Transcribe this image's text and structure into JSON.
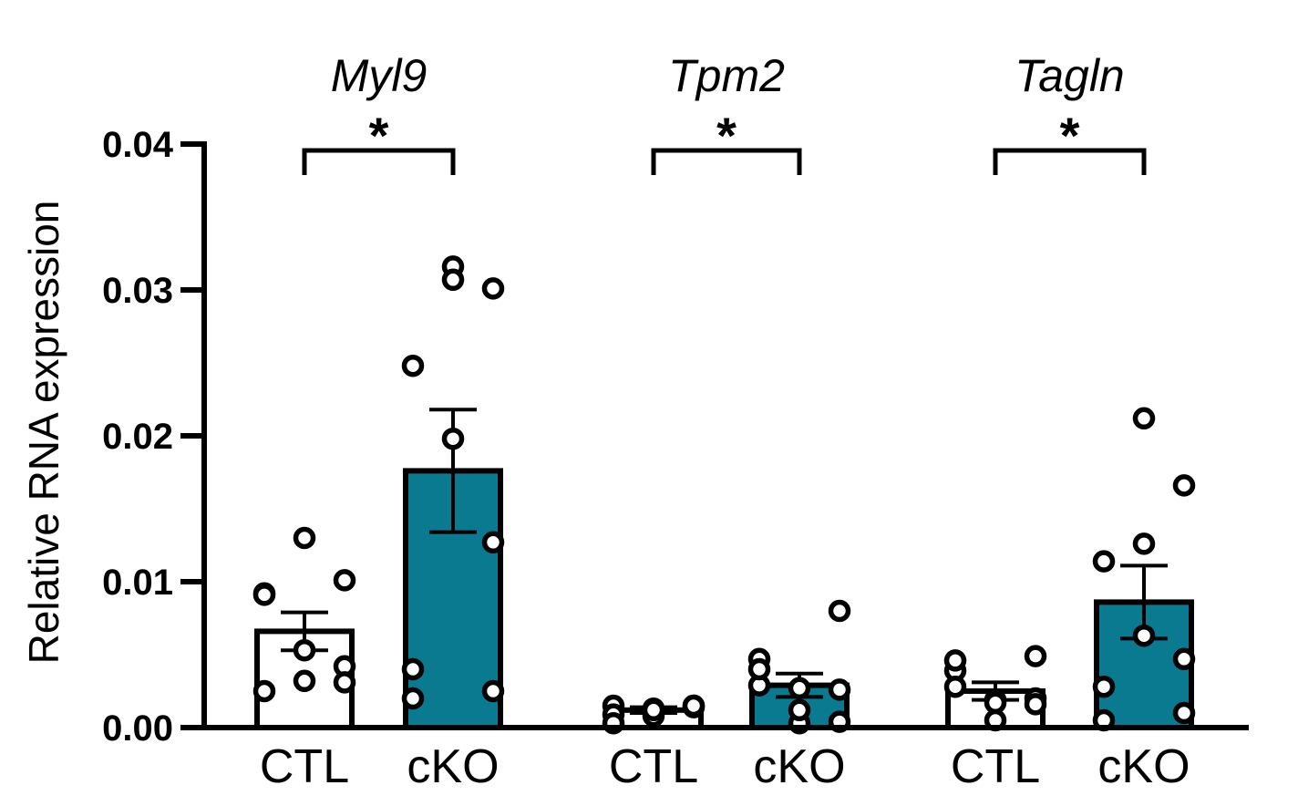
{
  "chart_data": {
    "type": "bar",
    "ylabel": "Relative RNA expression",
    "ylim": [
      0,
      0.04
    ],
    "yticks": [
      "0.00",
      "0.01",
      "0.02",
      "0.03",
      "0.04"
    ],
    "ytick_values": [
      0,
      0.01,
      0.02,
      0.03,
      0.04
    ],
    "colors": {
      "CTL": "#ffffff",
      "cKO": "#0a7a91"
    },
    "groups": [
      {
        "gene": "Myl9",
        "significance": "*",
        "bars": [
          {
            "label": "CTL",
            "mean": 0.0066,
            "sem": 0.0013,
            "points": [
              0.0092,
              0.013,
              0.0101,
              0.0091,
              0.0053,
              0.0042,
              0.0025,
              0.0032,
              0.0031
            ]
          },
          {
            "label": "cKO",
            "mean": 0.0176,
            "sem": 0.0042,
            "points": [
              0.002,
              0.0316,
              0.0301,
              0.0248,
              0.0198,
              0.0127,
              0.004,
              0.0307,
              0.0025
            ]
          }
        ]
      },
      {
        "gene": "Tpm2",
        "significance": "*",
        "bars": [
          {
            "label": "CTL",
            "mean": 0.0012,
            "sem": 0.0002,
            "points": [
              0.0015,
              0.0008,
              0.0014,
              0.0009,
              0.0013,
              0.0015,
              0.0003,
              0.0012,
              0.0015
            ]
          },
          {
            "label": "cKO",
            "mean": 0.0029,
            "sem": 0.0008,
            "points": [
              0.0047,
              0.0003,
              0.0026,
              0.0029,
              0.0012,
              0.008,
              0.004,
              0.0027,
              0.0004
            ]
          }
        ]
      },
      {
        "gene": "Tagln",
        "significance": "*",
        "bars": [
          {
            "label": "CTL",
            "mean": 0.0025,
            "sem": 0.0006,
            "points": [
              0.0039,
              0.0005,
              0.002,
              0.0046,
              0.0019,
              0.0049,
              0.0028,
              0.0017,
              0.0016
            ]
          },
          {
            "label": "cKO",
            "mean": 0.0086,
            "sem": 0.0025,
            "points": [
              0.0005,
              0.0212,
              0.0166,
              0.0114,
              0.0063,
              0.0047,
              0.0028,
              0.0126,
              0.001
            ]
          }
        ]
      }
    ]
  }
}
